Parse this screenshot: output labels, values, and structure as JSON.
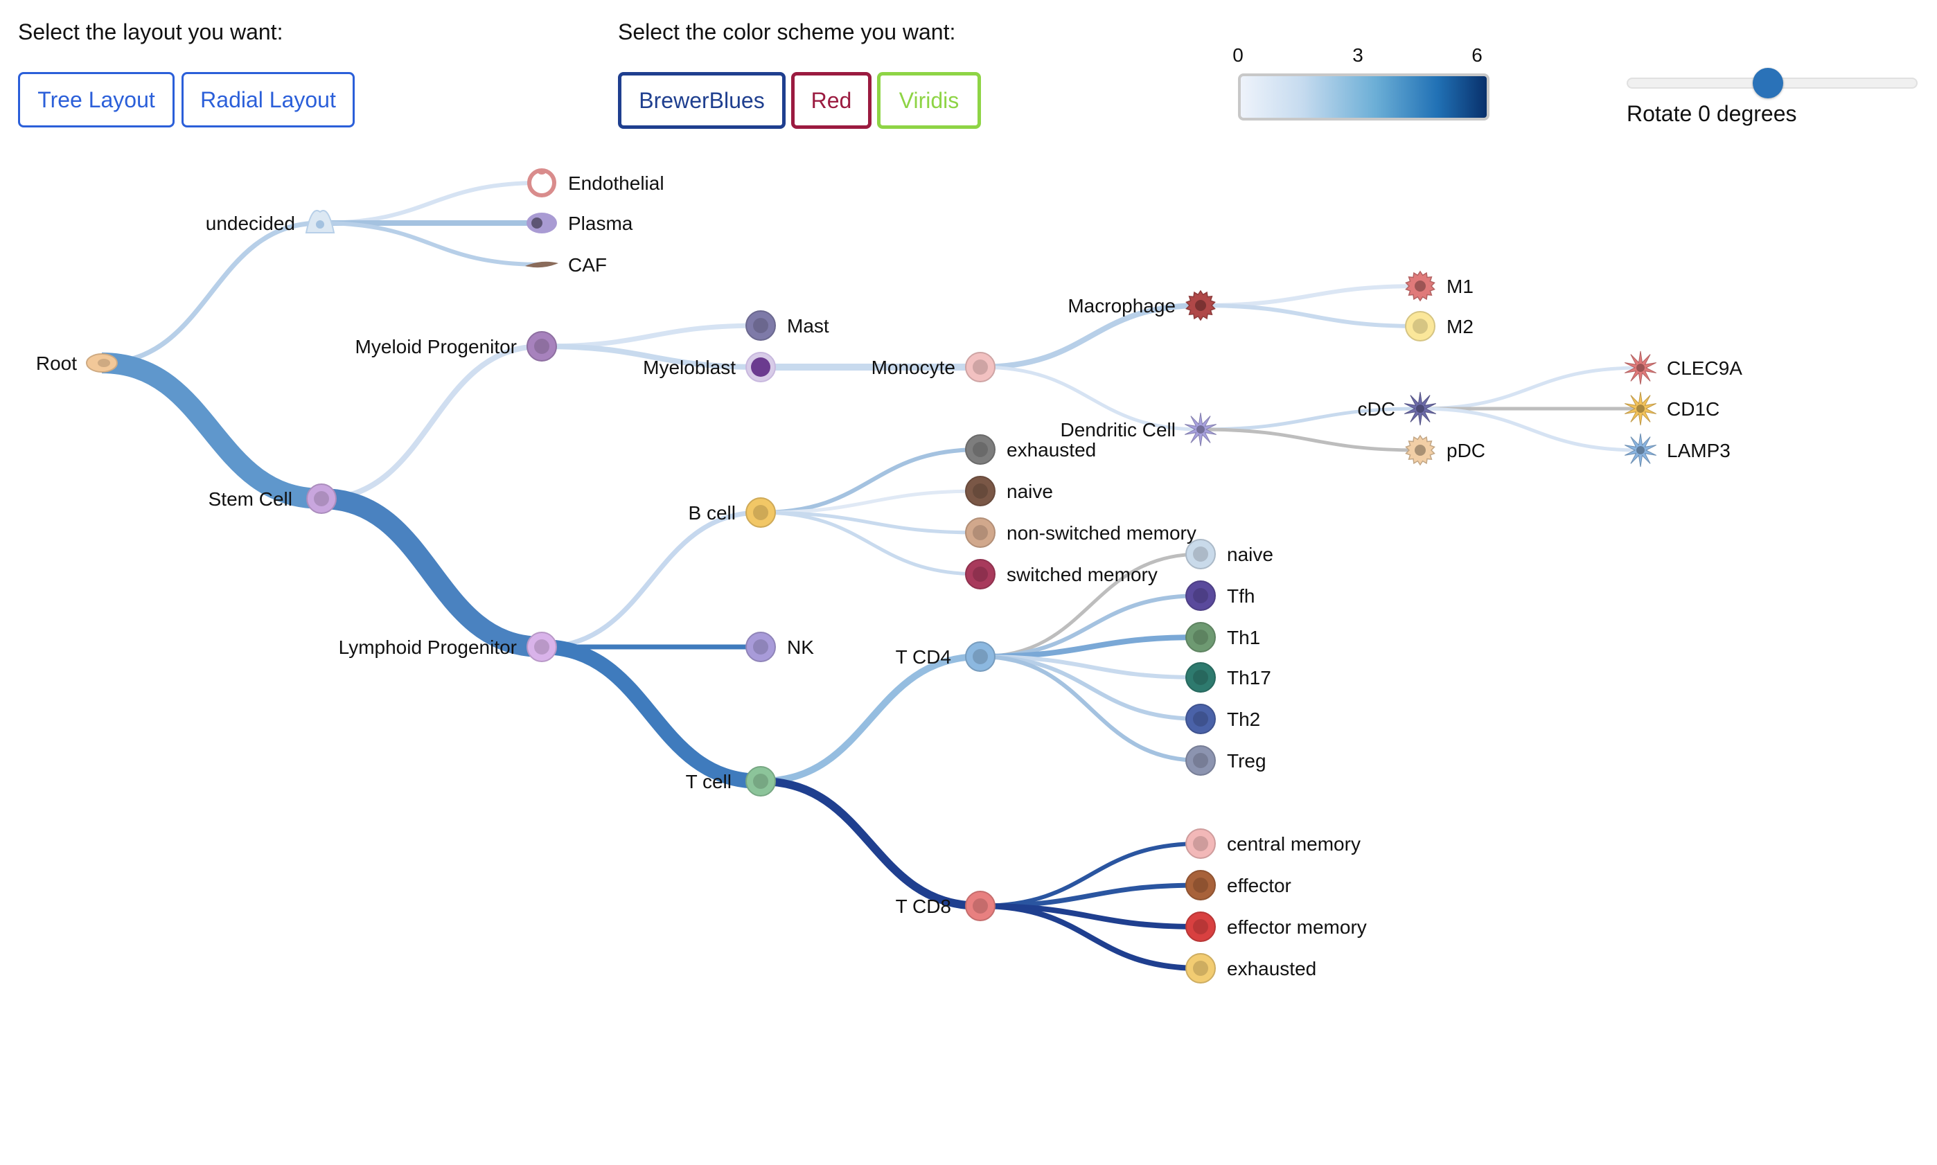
{
  "controls": {
    "layout_label": "Select the layout you want:",
    "layout_buttons": [
      {
        "label": "Tree Layout"
      },
      {
        "label": "Radial Layout"
      }
    ],
    "color_label": "Select the color scheme you want:",
    "color_buttons": [
      {
        "label": "BrewerBlues",
        "color": "#1f3f8f"
      },
      {
        "label": "Red",
        "color": "#9b1b40"
      },
      {
        "label": "Viridis",
        "color": "#8ed445"
      }
    ],
    "legend": {
      "ticks": [
        "0",
        "3",
        "6"
      ],
      "min": 0,
      "max": 6,
      "colors": [
        "#eef3fb",
        "#c6dbef",
        "#6baed6",
        "#2171b5",
        "#08306b"
      ]
    },
    "rotate": {
      "label": "Rotate 0 degrees",
      "value": 0
    }
  },
  "tree": {
    "nodes": [
      {
        "id": "root",
        "label": "Root",
        "color": "#f2c899",
        "shape": "oval",
        "side": "left"
      },
      {
        "id": "undecided",
        "label": "undecided",
        "color": "#dce8f3",
        "shape": "drop",
        "side": "left"
      },
      {
        "id": "endothelial",
        "label": "Endothelial",
        "color": "#ffffff",
        "ring": "#d98c8c",
        "shape": "ring",
        "side": "right"
      },
      {
        "id": "plasma",
        "label": "Plasma",
        "color": "#a99bd3",
        "shape": "oval2",
        "side": "right"
      },
      {
        "id": "caf",
        "label": "CAF",
        "color": "#8a6b5a",
        "shape": "spindle",
        "side": "right"
      },
      {
        "id": "stem",
        "label": "Stem Cell",
        "color": "#c9a6de",
        "shape": "circle",
        "side": "left"
      },
      {
        "id": "myeloid",
        "label": "Myeloid Progenitor",
        "color": "#a782bd",
        "shape": "circle",
        "side": "left"
      },
      {
        "id": "mast",
        "label": "Mast",
        "color": "#7e7aa8",
        "shape": "circle",
        "side": "right"
      },
      {
        "id": "myeloblast",
        "label": "Myeloblast",
        "color": "#6b3b8f",
        "ring": "#d8cce8",
        "shape": "circle",
        "side": "left"
      },
      {
        "id": "monocyte",
        "label": "Monocyte",
        "color": "#f2c1c1",
        "shape": "circle",
        "side": "left"
      },
      {
        "id": "macrophage",
        "label": "Macrophage",
        "color": "#b04848",
        "shape": "star",
        "side": "left"
      },
      {
        "id": "m1",
        "label": "M1",
        "color": "#e07a7a",
        "shape": "star",
        "side": "right"
      },
      {
        "id": "m2",
        "label": "M2",
        "color": "#fbe79a",
        "shape": "circle",
        "side": "right"
      },
      {
        "id": "dendritic",
        "label": "Dendritic Cell",
        "color": "#a6a0dc",
        "shape": "spiky",
        "side": "left"
      },
      {
        "id": "cdc",
        "label": "cDC",
        "color": "#6b6aa8",
        "shape": "spiky",
        "side": "left"
      },
      {
        "id": "pdc",
        "label": "pDC",
        "color": "#f2cfa6",
        "shape": "star",
        "side": "right"
      },
      {
        "id": "clec9a",
        "label": "CLEC9A",
        "color": "#e07a7a",
        "shape": "spiky",
        "side": "right"
      },
      {
        "id": "cd1c",
        "label": "CD1C",
        "color": "#f2c25a",
        "shape": "spiky",
        "side": "right"
      },
      {
        "id": "lamp3",
        "label": "LAMP3",
        "color": "#8ab4e0",
        "shape": "spiky",
        "side": "right"
      },
      {
        "id": "lymphoid",
        "label": "Lymphoid Progenitor",
        "color": "#d9b3ea",
        "shape": "circle",
        "side": "left"
      },
      {
        "id": "bcell",
        "label": "B cell",
        "color": "#f2c766",
        "shape": "circle",
        "side": "left"
      },
      {
        "id": "b_exhausted",
        "label": "exhausted",
        "color": "#7d7d7d",
        "shape": "circle",
        "side": "right"
      },
      {
        "id": "b_naive",
        "label": "naive",
        "color": "#7a5746",
        "shape": "circle",
        "side": "right"
      },
      {
        "id": "b_nsm",
        "label": "non-switched memory",
        "color": "#d1a88c",
        "shape": "circle",
        "side": "right"
      },
      {
        "id": "b_sm",
        "label": "switched memory",
        "color": "#a83a5c",
        "shape": "circle",
        "side": "right"
      },
      {
        "id": "nk",
        "label": "NK",
        "color": "#a89bd9",
        "shape": "circle",
        "side": "right"
      },
      {
        "id": "tcell",
        "label": "T cell",
        "color": "#8cc49a",
        "shape": "circle",
        "side": "left"
      },
      {
        "id": "tcd4",
        "label": "T CD4",
        "color": "#8cb8e0",
        "shape": "circle",
        "side": "left"
      },
      {
        "id": "cd4_naive",
        "label": "naive",
        "color": "#c9daea",
        "shape": "circle",
        "side": "right"
      },
      {
        "id": "tfh",
        "label": "Tfh",
        "color": "#5a4a9c",
        "shape": "circle",
        "side": "right"
      },
      {
        "id": "th1",
        "label": "Th1",
        "color": "#6e9a72",
        "shape": "circle",
        "side": "right"
      },
      {
        "id": "th17",
        "label": "Th17",
        "color": "#2e7a6e",
        "shape": "circle",
        "side": "right"
      },
      {
        "id": "th2",
        "label": "Th2",
        "color": "#4a62a8",
        "shape": "circle",
        "side": "right"
      },
      {
        "id": "treg",
        "label": "Treg",
        "color": "#8c94b0",
        "shape": "circle",
        "side": "right"
      },
      {
        "id": "tcd8",
        "label": "T CD8",
        "color": "#e88080",
        "shape": "circle",
        "side": "left"
      },
      {
        "id": "cm",
        "label": "central memory",
        "color": "#f2b8b8",
        "shape": "circle",
        "side": "right"
      },
      {
        "id": "effector",
        "label": "effector",
        "color": "#a8623a",
        "shape": "circle",
        "side": "right"
      },
      {
        "id": "em",
        "label": "effector memory",
        "color": "#d84040",
        "shape": "circle",
        "side": "right"
      },
      {
        "id": "cd8_exhausted",
        "label": "exhausted",
        "color": "#f2cc72",
        "shape": "circle",
        "side": "right"
      }
    ],
    "links": [
      {
        "source": "root",
        "target": "undecided",
        "color": "#b7cfe8",
        "width": 7
      },
      {
        "source": "root",
        "target": "stem",
        "color": "#5f97cc",
        "width": 30
      },
      {
        "source": "undecided",
        "target": "endothelial",
        "color": "#d6e3f3",
        "width": 6
      },
      {
        "source": "undecided",
        "target": "plasma",
        "color": "#a4c2e0",
        "width": 8
      },
      {
        "source": "undecided",
        "target": "caf",
        "color": "#b7cfe8",
        "width": 6
      },
      {
        "source": "stem",
        "target": "myeloid",
        "color": "#d0def0",
        "width": 8
      },
      {
        "source": "stem",
        "target": "lymphoid",
        "color": "#4a82c0",
        "width": 30
      },
      {
        "source": "myeloid",
        "target": "mast",
        "color": "#d6e3f3",
        "width": 7
      },
      {
        "source": "myeloid",
        "target": "myeloblast",
        "color": "#c8daee",
        "width": 8
      },
      {
        "source": "myeloblast",
        "target": "monocyte",
        "color": "#c8daee",
        "width": 10
      },
      {
        "source": "monocyte",
        "target": "macrophage",
        "color": "#b7cfe8",
        "width": 8
      },
      {
        "source": "monocyte",
        "target": "dendritic",
        "color": "#d6e3f3",
        "width": 5
      },
      {
        "source": "macrophage",
        "target": "m1",
        "color": "#dbe6f4",
        "width": 6
      },
      {
        "source": "macrophage",
        "target": "m2",
        "color": "#c8daee",
        "width": 6
      },
      {
        "source": "dendritic",
        "target": "cdc",
        "color": "#c8daee",
        "width": 5
      },
      {
        "source": "dendritic",
        "target": "pdc",
        "color": "#bdbdbd",
        "width": 5
      },
      {
        "source": "cdc",
        "target": "clec9a",
        "color": "#d6e3f3",
        "width": 5
      },
      {
        "source": "cdc",
        "target": "cd1c",
        "color": "#bdbdbd",
        "width": 5
      },
      {
        "source": "cdc",
        "target": "lamp3",
        "color": "#d6e3f3",
        "width": 5
      },
      {
        "source": "lymphoid",
        "target": "bcell",
        "color": "#c6d8ee",
        "width": 7
      },
      {
        "source": "lymphoid",
        "target": "nk",
        "color": "#3f7bbd",
        "width": 7
      },
      {
        "source": "lymphoid",
        "target": "tcell",
        "color": "#3f7bbd",
        "width": 22
      },
      {
        "source": "bcell",
        "target": "b_exhausted",
        "color": "#a4c2e0",
        "width": 6
      },
      {
        "source": "bcell",
        "target": "b_naive",
        "color": "#e0e9f5",
        "width": 5
      },
      {
        "source": "bcell",
        "target": "b_nsm",
        "color": "#c8daee",
        "width": 5
      },
      {
        "source": "bcell",
        "target": "b_sm",
        "color": "#c8daee",
        "width": 5
      },
      {
        "source": "tcell",
        "target": "tcd4",
        "color": "#95bde0",
        "width": 10
      },
      {
        "source": "tcell",
        "target": "tcd8",
        "color": "#1f3f8f",
        "width": 12
      },
      {
        "source": "tcd4",
        "target": "cd4_naive",
        "color": "#bdbdbd",
        "width": 5
      },
      {
        "source": "tcd4",
        "target": "tfh",
        "color": "#a4c2e0",
        "width": 6
      },
      {
        "source": "tcd4",
        "target": "th1",
        "color": "#7aa8d6",
        "width": 8
      },
      {
        "source": "tcd4",
        "target": "th17",
        "color": "#c8daee",
        "width": 6
      },
      {
        "source": "tcd4",
        "target": "th2",
        "color": "#b7cfe8",
        "width": 6
      },
      {
        "source": "tcd4",
        "target": "treg",
        "color": "#a4c2e0",
        "width": 6
      },
      {
        "source": "tcd8",
        "target": "cm",
        "color": "#2a55a0",
        "width": 6
      },
      {
        "source": "tcd8",
        "target": "effector",
        "color": "#2a55a0",
        "width": 7
      },
      {
        "source": "tcd8",
        "target": "em",
        "color": "#1f3f8f",
        "width": 8
      },
      {
        "source": "tcd8",
        "target": "cd8_exhausted",
        "color": "#1f3f8f",
        "width": 8
      }
    ]
  }
}
